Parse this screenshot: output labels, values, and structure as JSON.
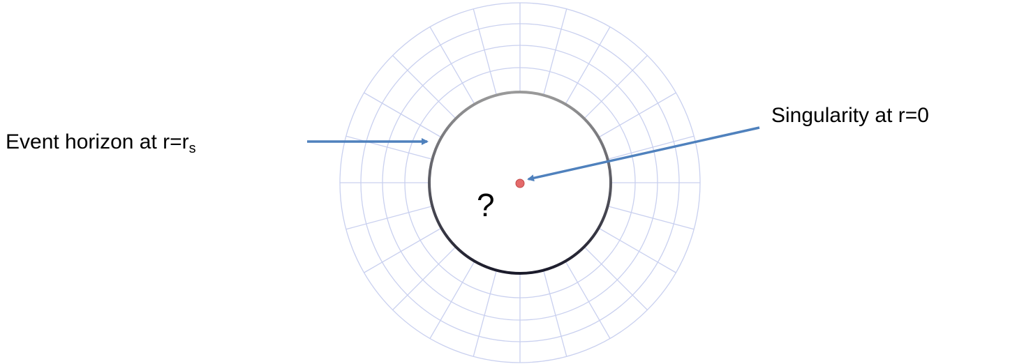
{
  "labels": {
    "event_horizon": {
      "text": "Event horizon at r=r",
      "subscript": "s"
    },
    "singularity": "Singularity at r=0",
    "unknown": "?"
  }
}
